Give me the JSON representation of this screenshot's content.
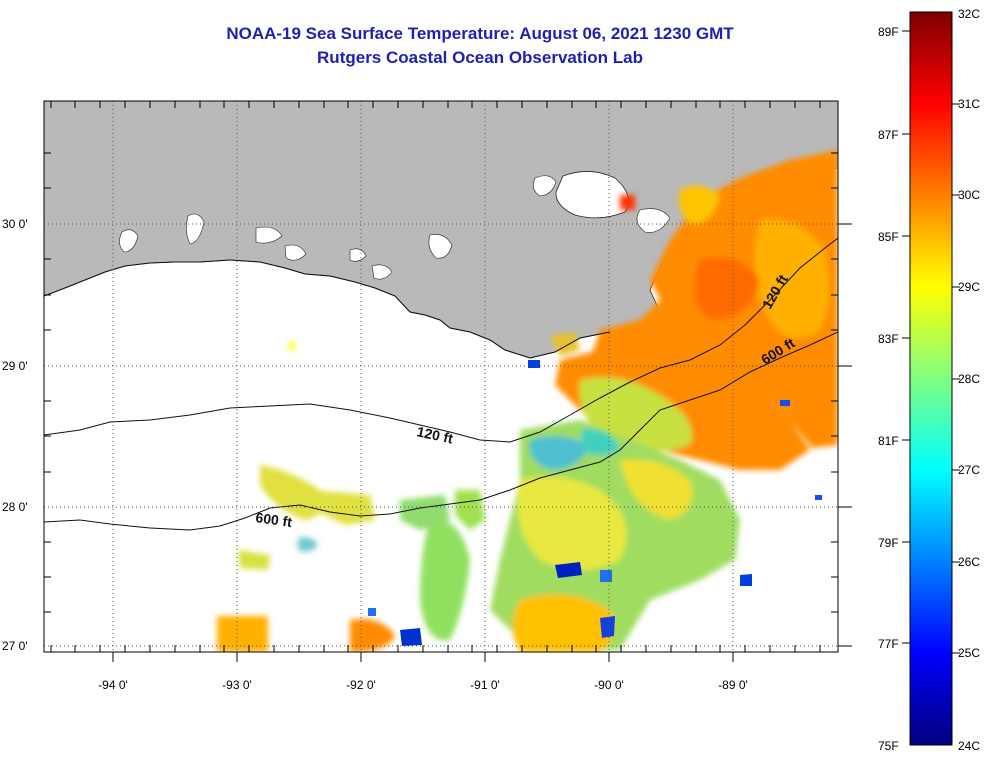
{
  "header": {
    "title": "NOAA-19 Sea Surface Temperature:  August 06, 2021 1230 GMT",
    "subtitle": "Rutgers Coastal Ocean Observation Lab"
  },
  "map": {
    "lon_ticks": [
      "-94 0'",
      "-93 0'",
      "-92 0'",
      "-91 0'",
      "-90 0'",
      "-89 0'"
    ],
    "lat_ticks": [
      "30 0'",
      "29 0'",
      "28 0'",
      "27 0'"
    ],
    "contour_labels": {
      "west_120": "120 ft",
      "west_600": "600 ft",
      "east_120": "120 ft",
      "east_600": "600 ft"
    },
    "colors": {
      "land": "#b9b9b9",
      "no_data": "#ffffff",
      "grid": "#555555"
    }
  },
  "colorbar": {
    "fahrenheit": [
      "89F",
      "87F",
      "85F",
      "83F",
      "81F",
      "79F",
      "77F",
      "75F"
    ],
    "celsius": [
      "32C",
      "31C",
      "30C",
      "29C",
      "28C",
      "27C",
      "26C",
      "25C",
      "24C"
    ],
    "colors": [
      "#00007f",
      "#0000ff",
      "#0080ff",
      "#00ffff",
      "#80ff80",
      "#ffff00",
      "#ff8000",
      "#ff0000",
      "#7f0000"
    ]
  }
}
